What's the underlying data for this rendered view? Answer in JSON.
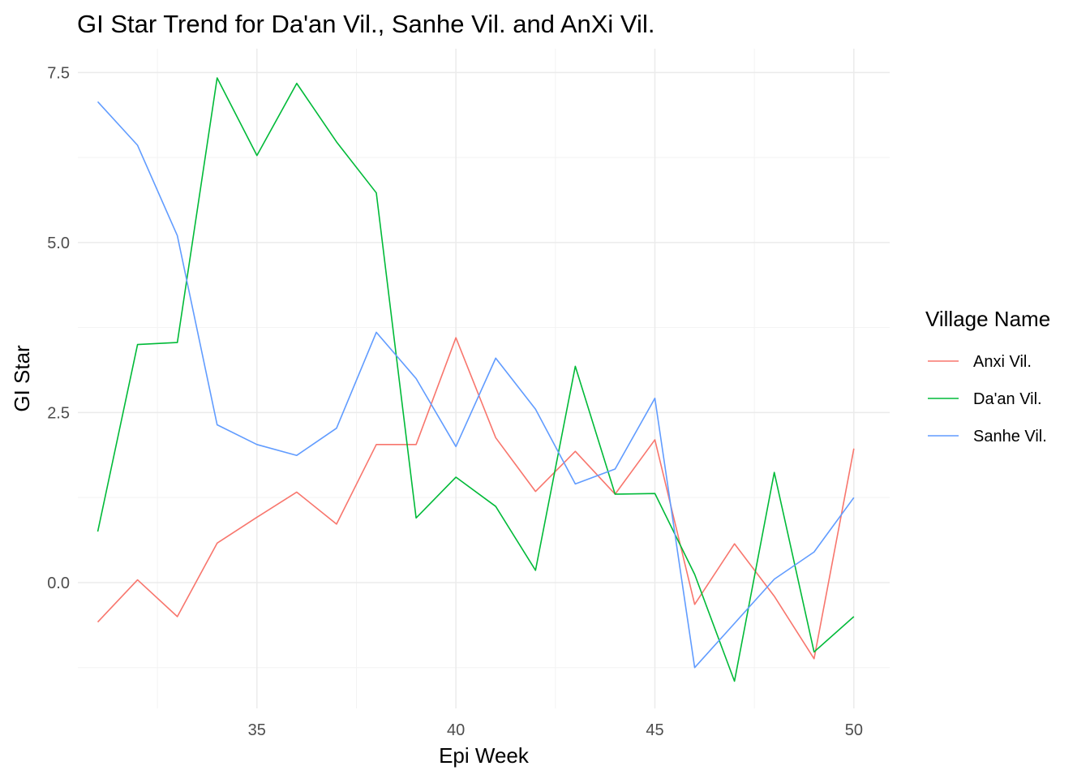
{
  "chart_data": {
    "type": "line",
    "title": "GI Star Trend for Da'an Vil., Sanhe Vil. and AnXi Vil.",
    "xlabel": "Epi Week",
    "ylabel": "GI Star",
    "xlim": [
      30.5,
      50.9
    ],
    "ylim": [
      -1.85,
      7.85
    ],
    "xticks": [
      35,
      40,
      45,
      50
    ],
    "xtick_labels": [
      "35",
      "40",
      "45",
      "50"
    ],
    "x_minor": [
      32.5,
      37.5,
      42.5,
      47.5
    ],
    "yticks": [
      0,
      2.5,
      5,
      7.5
    ],
    "ytick_labels": [
      "0.0",
      "2.5",
      "5.0",
      "7.5"
    ],
    "y_minor": [
      -1.25,
      1.25,
      3.75,
      6.25
    ],
    "grid": true,
    "legend_position": "right",
    "legend_title": "Village Name",
    "x": [
      31,
      32,
      33,
      34,
      35,
      36,
      37,
      38,
      39,
      40,
      41,
      42,
      43,
      44,
      45,
      46,
      47,
      48,
      49,
      50
    ],
    "series": [
      {
        "name": "Anxi Vil.",
        "color": "#F8766D",
        "values": [
          -0.58,
          0.04,
          -0.5,
          0.58,
          0.96,
          1.33,
          0.86,
          2.03,
          2.03,
          3.6,
          2.13,
          1.34,
          1.93,
          1.3,
          2.1,
          -0.32,
          0.57,
          -0.2,
          -1.12,
          1.97
        ]
      },
      {
        "name": "Da'an Vil.",
        "color": "#00BA38",
        "values": [
          0.75,
          3.5,
          3.53,
          7.42,
          6.28,
          7.34,
          6.48,
          5.73,
          0.95,
          1.55,
          1.12,
          0.18,
          3.18,
          1.3,
          1.31,
          0.12,
          -1.45,
          1.62,
          -1.02,
          -0.5
        ]
      },
      {
        "name": "Sanhe Vil.",
        "color": "#619CFF",
        "values": [
          7.07,
          6.43,
          5.1,
          2.32,
          2.03,
          1.87,
          2.27,
          3.68,
          3.0,
          2.0,
          3.3,
          2.55,
          1.45,
          1.67,
          2.71,
          -1.25,
          -0.6,
          0.05,
          0.45,
          1.25
        ]
      }
    ]
  }
}
